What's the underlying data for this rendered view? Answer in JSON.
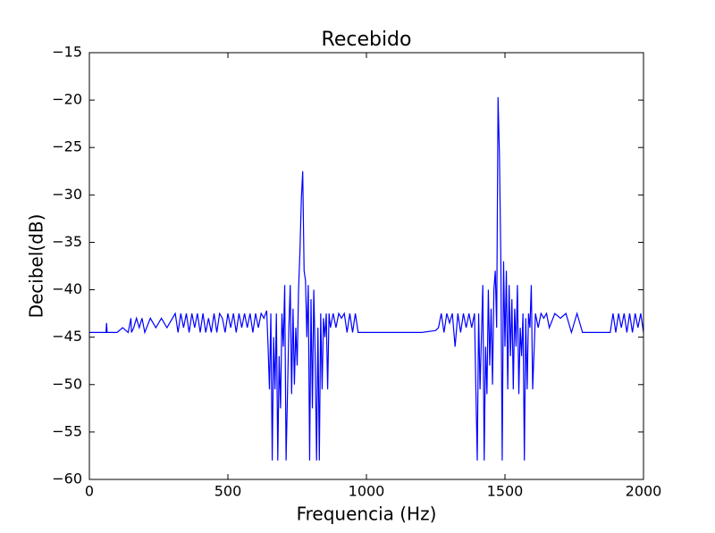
{
  "chart_data": {
    "type": "line",
    "title": "Recebido",
    "x_label": "Frequencia (Hz)",
    "y_label": "Decibel(dB)",
    "color": "#0000ff",
    "x": [
      0,
      20,
      40,
      60,
      62,
      64,
      80,
      100,
      120,
      140,
      150,
      152,
      160,
      170,
      180,
      190,
      200,
      220,
      240,
      260,
      280,
      300,
      310,
      320,
      330,
      340,
      350,
      360,
      370,
      380,
      390,
      400,
      410,
      420,
      430,
      440,
      450,
      460,
      470,
      480,
      490,
      500,
      510,
      520,
      530,
      540,
      550,
      560,
      570,
      580,
      590,
      600,
      610,
      620,
      630,
      640,
      645,
      650,
      655,
      660,
      665,
      670,
      675,
      680,
      685,
      690,
      695,
      700,
      705,
      710,
      715,
      720,
      725,
      730,
      735,
      740,
      745,
      750,
      755,
      760,
      765,
      770,
      775,
      780,
      785,
      790,
      795,
      800,
      805,
      810,
      815,
      820,
      825,
      830,
      835,
      840,
      845,
      850,
      855,
      860,
      865,
      870,
      880,
      890,
      900,
      910,
      920,
      930,
      940,
      950,
      960,
      970,
      980,
      1000,
      1050,
      1100,
      1150,
      1200,
      1250,
      1260,
      1270,
      1280,
      1290,
      1300,
      1310,
      1320,
      1330,
      1340,
      1350,
      1360,
      1370,
      1380,
      1390,
      1395,
      1400,
      1405,
      1410,
      1415,
      1420,
      1425,
      1430,
      1435,
      1440,
      1445,
      1450,
      1455,
      1460,
      1465,
      1470,
      1475,
      1480,
      1485,
      1490,
      1495,
      1500,
      1505,
      1510,
      1515,
      1520,
      1525,
      1530,
      1535,
      1540,
      1545,
      1550,
      1555,
      1560,
      1565,
      1570,
      1575,
      1580,
      1585,
      1590,
      1595,
      1600,
      1610,
      1620,
      1630,
      1640,
      1650,
      1660,
      1680,
      1700,
      1720,
      1740,
      1760,
      1780,
      1800,
      1850,
      1880,
      1890,
      1900,
      1910,
      1920,
      1930,
      1940,
      1950,
      1960,
      1970,
      1980,
      1990,
      2000
    ],
    "values": [
      -44.5,
      -44.5,
      -44.5,
      -44.5,
      -43.5,
      -44.5,
      -44.5,
      -44.5,
      -44,
      -44.5,
      -43,
      -44.5,
      -44,
      -43,
      -44,
      -43,
      -44.5,
      -43,
      -44,
      -43,
      -44,
      -43,
      -42.5,
      -44.5,
      -42.5,
      -44,
      -42.5,
      -44.5,
      -42.5,
      -44,
      -42.5,
      -44.5,
      -42.5,
      -44.5,
      -43,
      -44.5,
      -42.5,
      -44.5,
      -42.5,
      -43,
      -44.5,
      -42.5,
      -44,
      -42.5,
      -44.5,
      -42.5,
      -44,
      -42.5,
      -44,
      -42.5,
      -44.5,
      -42.5,
      -44,
      -42.5,
      -43,
      -42.2,
      -46,
      -50.5,
      -42.5,
      -58,
      -45,
      -50.5,
      -42.5,
      -58,
      -47,
      -52.5,
      -42.5,
      -46,
      -39.5,
      -58,
      -51,
      -44,
      -39.5,
      -51,
      -42,
      -50,
      -44,
      -48,
      -40,
      -36,
      -30.5,
      -27.5,
      -38,
      -39,
      -45,
      -39.5,
      -58,
      -41,
      -52.5,
      -40,
      -47,
      -58,
      -44,
      -58,
      -42.5,
      -50.5,
      -43,
      -45,
      -42.5,
      -50.5,
      -42.5,
      -44,
      -42.5,
      -44,
      -42.5,
      -43,
      -42.5,
      -44.5,
      -42.5,
      -44.5,
      -42.5,
      -44.5,
      -44.5,
      -44.5,
      -44.5,
      -44.5,
      -44.5,
      -44.5,
      -44.3,
      -44,
      -42.5,
      -44.5,
      -42.5,
      -43.5,
      -42.5,
      -46,
      -42.5,
      -44.5,
      -42.5,
      -44,
      -42.5,
      -44,
      -42.5,
      -50.5,
      -58,
      -42.5,
      -50.5,
      -45,
      -39.5,
      -58,
      -46,
      -51,
      -40,
      -48,
      -42,
      -50,
      -40,
      -38,
      -44,
      -19.7,
      -25.7,
      -36.5,
      -58,
      -37,
      -46,
      -38,
      -50.5,
      -39.5,
      -47,
      -41,
      -50.5,
      -42,
      -46,
      -39.5,
      -51,
      -44,
      -47,
      -42.5,
      -58,
      -43,
      -50.5,
      -42.5,
      -44,
      -39.5,
      -50.5,
      -42.5,
      -44,
      -42.5,
      -43,
      -42.5,
      -44,
      -42.5,
      -43,
      -42.5,
      -44.5,
      -42.5,
      -44.5,
      -44.5,
      -44.5,
      -44.5,
      -42.5,
      -44.5,
      -42.5,
      -44,
      -42.5,
      -44.5,
      -42.5,
      -44.5,
      -42.5,
      -44,
      -42.5,
      -44.5
    ],
    "xlim": [
      0,
      2000
    ],
    "xticks": [
      0,
      500,
      1000,
      1500,
      2000
    ],
    "ylim": [
      -60,
      -15
    ],
    "yticks": [
      {
        "value": -60,
        "label": "−60"
      },
      {
        "value": -55,
        "label": "−55"
      },
      {
        "value": -50,
        "label": "−50"
      },
      {
        "value": -45,
        "label": "−45"
      },
      {
        "value": -40,
        "label": "−40"
      },
      {
        "value": -35,
        "label": "−35"
      },
      {
        "value": -30,
        "label": "−30"
      },
      {
        "value": -25,
        "label": "−25"
      },
      {
        "value": -20,
        "label": "−20"
      },
      {
        "value": -15,
        "label": "−15"
      }
    ]
  }
}
